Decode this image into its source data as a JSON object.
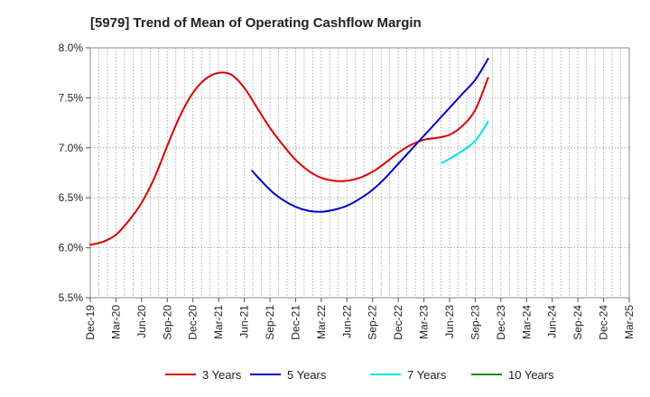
{
  "chart_data": {
    "type": "line",
    "title": "[5979]  Trend of Mean of Operating Cashflow Margin",
    "xlabel": "",
    "ylabel": "",
    "ylim": [
      5.5,
      8.0
    ],
    "y_ticks": [
      "5.5%",
      "6.0%",
      "6.5%",
      "7.0%",
      "7.5%",
      "8.0%"
    ],
    "y_tick_values": [
      5.5,
      6.0,
      6.5,
      7.0,
      7.5,
      8.0
    ],
    "categories": [
      "Dec-19",
      "Mar-20",
      "Jun-20",
      "Sep-20",
      "Dec-20",
      "Mar-21",
      "Jun-21",
      "Sep-21",
      "Dec-21",
      "Mar-22",
      "Jun-22",
      "Sep-22",
      "Dec-22",
      "Mar-23",
      "Jun-23",
      "Sep-23",
      "Dec-23",
      "Mar-24",
      "Jun-24",
      "Sep-24",
      "Dec-24",
      "Mar-25"
    ],
    "grid": true,
    "legend_position": "bottom",
    "series": [
      {
        "name": "3 Years",
        "color": "#dd0000",
        "points": [
          [
            0,
            6.03
          ],
          [
            0.5,
            6.06
          ],
          [
            1,
            6.13
          ],
          [
            1.5,
            6.27
          ],
          [
            2,
            6.45
          ],
          [
            2.5,
            6.7
          ],
          [
            3,
            7.02
          ],
          [
            3.5,
            7.32
          ],
          [
            4,
            7.55
          ],
          [
            4.5,
            7.69
          ],
          [
            5,
            7.75
          ],
          [
            5.5,
            7.73
          ],
          [
            6,
            7.6
          ],
          [
            6.5,
            7.4
          ],
          [
            7,
            7.2
          ],
          [
            7.5,
            7.03
          ],
          [
            8,
            6.88
          ],
          [
            8.5,
            6.77
          ],
          [
            9,
            6.7
          ],
          [
            9.5,
            6.67
          ],
          [
            10,
            6.67
          ],
          [
            10.5,
            6.7
          ],
          [
            11,
            6.76
          ],
          [
            11.5,
            6.85
          ],
          [
            12,
            6.95
          ],
          [
            12.5,
            7.03
          ],
          [
            13,
            7.08
          ],
          [
            13.5,
            7.1
          ],
          [
            14,
            7.13
          ],
          [
            14.5,
            7.22
          ],
          [
            15,
            7.38
          ],
          [
            15.5,
            7.7
          ]
        ]
      },
      {
        "name": "5 Years",
        "color": "#0000cc",
        "points": [
          [
            6.3,
            6.77
          ],
          [
            7,
            6.58
          ],
          [
            7.5,
            6.48
          ],
          [
            8,
            6.41
          ],
          [
            8.5,
            6.37
          ],
          [
            9,
            6.36
          ],
          [
            9.5,
            6.38
          ],
          [
            10,
            6.42
          ],
          [
            10.5,
            6.49
          ],
          [
            11,
            6.58
          ],
          [
            11.5,
            6.7
          ],
          [
            12,
            6.84
          ],
          [
            12.5,
            6.98
          ],
          [
            13,
            7.12
          ],
          [
            13.5,
            7.26
          ],
          [
            14,
            7.4
          ],
          [
            14.5,
            7.54
          ],
          [
            15,
            7.68
          ],
          [
            15.5,
            7.89
          ]
        ]
      },
      {
        "name": "7 Years",
        "color": "#00e5e5",
        "points": [
          [
            13.7,
            6.85
          ],
          [
            14,
            6.89
          ],
          [
            14.5,
            6.97
          ],
          [
            15,
            7.07
          ],
          [
            15.5,
            7.26
          ]
        ]
      },
      {
        "name": "10 Years",
        "color": "#228822",
        "points": []
      }
    ]
  }
}
